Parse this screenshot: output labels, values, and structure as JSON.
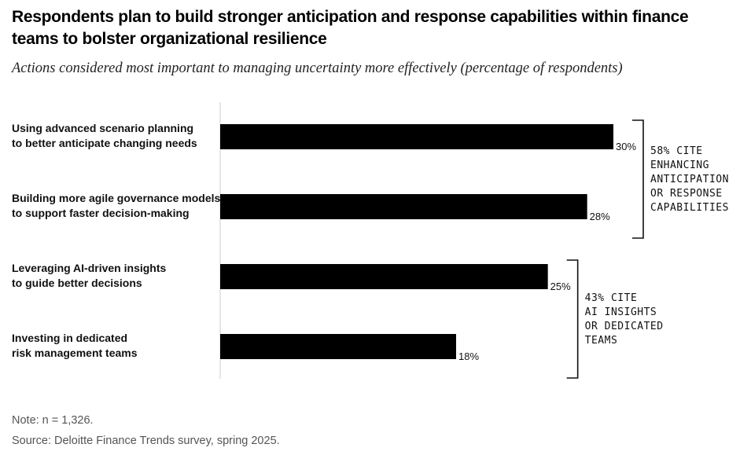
{
  "title": "Respondents plan to build stronger anticipation and response capabilities within finance teams to bolster organizational resilience",
  "subtitle": "Actions considered most important to managing uncertainty more effectively (percentage of respondents)",
  "note": "Note: n = 1,326.",
  "source": "Source: Deloitte Finance Trends survey, spring 2025.",
  "colors": {
    "bar": "#000000",
    "axis": "#cccccc",
    "bracket": "#111111"
  },
  "chart_data": {
    "type": "bar",
    "orientation": "horizontal",
    "categories": [
      [
        "Using advanced scenario planning",
        "to better anticipate changing needs"
      ],
      [
        "Building more agile governance models",
        "to support faster decision-making"
      ],
      [
        "Leveraging AI-driven insights",
        "to guide better decisions"
      ],
      [
        "Investing in dedicated",
        "risk management teams"
      ]
    ],
    "values": [
      30,
      28,
      25,
      18
    ],
    "value_labels": [
      "30%",
      "28%",
      "25%",
      "18%"
    ],
    "xlim": [
      0,
      30
    ],
    "annotations": [
      {
        "groups": [
          0,
          1
        ],
        "lines": [
          "58% CITE",
          "ENHANCING",
          "ANTICIPATION",
          "OR RESPONSE",
          "CAPABILITIES"
        ]
      },
      {
        "groups": [
          2,
          3
        ],
        "lines": [
          "43% CITE",
          "AI INSIGHTS",
          "OR DEDICATED",
          "TEAMS"
        ]
      }
    ]
  }
}
